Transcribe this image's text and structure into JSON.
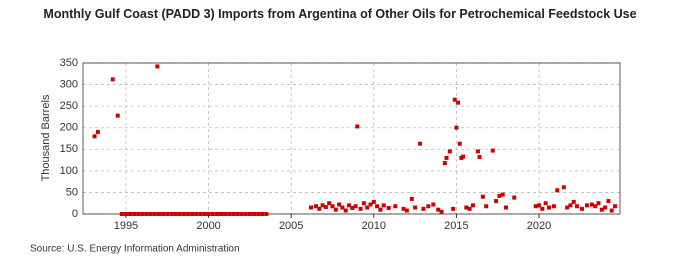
{
  "chart_data": {
    "type": "scatter",
    "title": "Monthly Gulf Coast (PADD 3) Imports from Argentina of Other Oils for Petrochemical Feedstock Use",
    "y_label": "Thousand Barrels",
    "source": "Source: U.S. Energy Information Administration",
    "color": "#cc0000",
    "grid": true,
    "xlim": [
      1992.4,
      2024.9
    ],
    "ylim": [
      0,
      350
    ],
    "xticks": [
      1995,
      2000,
      2005,
      2010,
      2015,
      2020
    ],
    "yticks": [
      0,
      50,
      100,
      150,
      200,
      250,
      300,
      350
    ],
    "x": [
      1993.1,
      1993.3,
      1994.2,
      1994.5,
      1996.9,
      1994.75,
      1995,
      1995.25,
      1995.5,
      1995.75,
      1996,
      1996.25,
      1996.5,
      1996.75,
      1997,
      1997.25,
      1997.5,
      1997.75,
      1998,
      1998.25,
      1998.5,
      1998.75,
      1999,
      1999.25,
      1999.5,
      1999.75,
      2000,
      2000.25,
      2000.5,
      2000.75,
      2001,
      2001.25,
      2001.5,
      2001.75,
      2002,
      2002.25,
      2002.5,
      2002.75,
      2003,
      2003.25,
      2003.5,
      2006.2,
      2006.5,
      2006.7,
      2006.9,
      2007.1,
      2007.3,
      2007.5,
      2007.7,
      2007.9,
      2008.1,
      2008.3,
      2008.5,
      2008.7,
      2008.9,
      2009.0,
      2009.2,
      2009.4,
      2009.6,
      2009.8,
      2010.0,
      2010.2,
      2010.4,
      2010.6,
      2010.9,
      2011.3,
      2011.8,
      2012.0,
      2012.3,
      2012.5,
      2012.8,
      2013.0,
      2013.3,
      2013.6,
      2013.9,
      2014.1,
      2014.3,
      2014.4,
      2014.6,
      2014.8,
      2014.9,
      2015.0,
      2015.1,
      2015.2,
      2015.3,
      2015.4,
      2015.6,
      2015.8,
      2016.0,
      2016.3,
      2016.4,
      2016.6,
      2016.8,
      2017.2,
      2017.4,
      2017.6,
      2017.8,
      2018.0,
      2018.5,
      2019.8,
      2020.0,
      2020.2,
      2020.4,
      2020.6,
      2020.9,
      2021.1,
      2021.5,
      2021.7,
      2021.9,
      2022.1,
      2022.3,
      2022.6,
      2022.9,
      2023.2,
      2023.4,
      2023.6,
      2023.8,
      2024.0,
      2024.2,
      2024.4,
      2024.6
    ],
    "values": [
      180,
      190,
      312,
      228,
      342,
      0,
      0,
      0,
      0,
      0,
      0,
      0,
      0,
      0,
      0,
      0,
      0,
      0,
      0,
      0,
      0,
      0,
      0,
      0,
      0,
      0,
      0,
      0,
      0,
      0,
      0,
      0,
      0,
      0,
      0,
      0,
      0,
      0,
      0,
      0,
      0,
      15,
      18,
      12,
      20,
      16,
      25,
      18,
      10,
      22,
      15,
      8,
      20,
      14,
      18,
      203,
      12,
      25,
      15,
      22,
      28,
      18,
      10,
      20,
      14,
      18,
      12,
      8,
      35,
      15,
      163,
      12,
      18,
      22,
      10,
      5,
      118,
      130,
      145,
      12,
      265,
      200,
      258,
      163,
      130,
      133,
      15,
      12,
      20,
      145,
      132,
      40,
      18,
      147,
      30,
      42,
      45,
      15,
      38,
      18,
      20,
      12,
      25,
      15,
      18,
      55,
      62,
      15,
      20,
      28,
      18,
      12,
      20,
      22,
      18,
      25,
      10,
      15,
      30,
      8,
      18
    ]
  }
}
